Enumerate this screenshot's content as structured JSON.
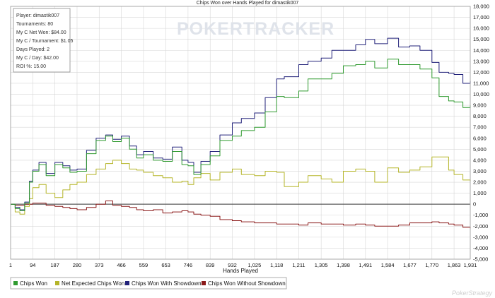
{
  "app": {
    "logo_text": "POKERTRACKER",
    "watermark": "PokerStrategy"
  },
  "stats": {
    "lines": [
      "Player: dimastik007",
      "Tournaments: 80",
      "My C Net Won: $84.00",
      "My C / Tournament: $1.05",
      "Days Played: 2",
      "My C / Day: $42.00",
      "ROI %: 15.00"
    ]
  },
  "colors": {
    "chips_won": "#2f9a2f",
    "net_expected": "#b5b52a",
    "with_showdown": "#22227a",
    "without_showdown": "#8b1a1a"
  },
  "chart_data": {
    "type": "line",
    "title": "Chips Won over Hands Played for dimastik007",
    "xlabel": "Hands Played",
    "ylabel": "",
    "xlim": [
      1,
      1931
    ],
    "ylim": [
      -5000,
      18000
    ],
    "x_ticks": [
      1,
      94,
      187,
      280,
      373,
      466,
      559,
      653,
      746,
      839,
      932,
      1025,
      1118,
      1211,
      1305,
      1398,
      1491,
      1584,
      1677,
      1770,
      1863,
      1931
    ],
    "x_tick_labels": [
      "1",
      "94",
      "187",
      "280",
      "373",
      "466",
      "559",
      "653",
      "746",
      "839",
      "932",
      "1,025",
      "1,118",
      "1,211",
      "1,305",
      "1,398",
      "1,491",
      "1,584",
      "1,677",
      "1,770",
      "1,863",
      "1,931"
    ],
    "y_ticks": [
      -5000,
      -4000,
      -3000,
      -2000,
      -1000,
      0,
      1000,
      2000,
      3000,
      4000,
      5000,
      6000,
      7000,
      8000,
      9000,
      10000,
      11000,
      12000,
      13000,
      14000,
      15000,
      16000,
      17000,
      18000
    ],
    "y_tick_labels": [
      "-5,000",
      "-4,000",
      "-3,000",
      "-2,000",
      "-1,000",
      "0",
      "1,000",
      "2,000",
      "3,000",
      "4,000",
      "5,000",
      "6,000",
      "7,000",
      "8,000",
      "9,000",
      "10,000",
      "11,000",
      "12,000",
      "13,000",
      "14,000",
      "15,000",
      "16,000",
      "17,000",
      "18,000"
    ],
    "grid": true,
    "legend_position": "bottom",
    "series": [
      {
        "name": "Chips Won",
        "x": [
          1,
          20,
          40,
          60,
          80,
          94,
          120,
          150,
          187,
          220,
          250,
          280,
          320,
          360,
          400,
          430,
          466,
          500,
          530,
          559,
          600,
          640,
          680,
          720,
          746,
          770,
          800,
          839,
          880,
          932,
          970,
          1025,
          1070,
          1118,
          1150,
          1211,
          1250,
          1305,
          1350,
          1398,
          1450,
          1491,
          1530,
          1584,
          1630,
          1677,
          1720,
          1770,
          1800,
          1840,
          1863,
          1900,
          1931
        ],
        "values": [
          0,
          -400,
          -600,
          100,
          2000,
          3000,
          3600,
          2600,
          3600,
          3300,
          2900,
          3000,
          4600,
          5800,
          6200,
          5700,
          6000,
          5000,
          4200,
          4500,
          4000,
          3900,
          4800,
          3600,
          3500,
          2700,
          3600,
          4400,
          5800,
          6200,
          6700,
          7000,
          8400,
          9800,
          9700,
          10300,
          11400,
          11400,
          11900,
          12600,
          12700,
          13000,
          12400,
          13200,
          12700,
          12700,
          12300,
          11500,
          9800,
          9400,
          9300,
          8800,
          9000
        ]
      },
      {
        "name": "Net Expected Chips Won",
        "x": [
          1,
          20,
          40,
          60,
          80,
          94,
          120,
          150,
          187,
          220,
          250,
          280,
          320,
          360,
          400,
          430,
          466,
          500,
          530,
          559,
          600,
          640,
          680,
          720,
          746,
          770,
          800,
          839,
          880,
          932,
          970,
          1025,
          1070,
          1118,
          1150,
          1211,
          1250,
          1305,
          1350,
          1398,
          1450,
          1491,
          1530,
          1584,
          1630,
          1677,
          1720,
          1770,
          1800,
          1840,
          1863,
          1900,
          1931
        ],
        "values": [
          0,
          -700,
          -900,
          -200,
          500,
          1500,
          1800,
          1000,
          600,
          1300,
          1800,
          2000,
          2700,
          3200,
          3700,
          4000,
          3700,
          3200,
          3100,
          2900,
          2600,
          2400,
          2000,
          2100,
          1800,
          2400,
          2800,
          2200,
          2900,
          3200,
          2700,
          2600,
          3000,
          2900,
          1600,
          2000,
          2600,
          2300,
          2000,
          3000,
          3200,
          3000,
          2000,
          3300,
          2900,
          3100,
          3400,
          4300,
          4300,
          3100,
          2700,
          2200,
          2100
        ]
      },
      {
        "name": "Chips Won With Showdown",
        "x": [
          1,
          20,
          40,
          60,
          80,
          94,
          120,
          150,
          187,
          220,
          250,
          280,
          320,
          360,
          400,
          430,
          466,
          500,
          530,
          559,
          600,
          640,
          680,
          720,
          746,
          770,
          800,
          839,
          880,
          932,
          970,
          1025,
          1070,
          1118,
          1150,
          1211,
          1250,
          1305,
          1350,
          1398,
          1450,
          1491,
          1530,
          1584,
          1630,
          1677,
          1720,
          1770,
          1800,
          1840,
          1863,
          1900,
          1931
        ],
        "values": [
          0,
          -300,
          -500,
          200,
          2100,
          3100,
          3800,
          2800,
          3800,
          3500,
          3100,
          3200,
          4900,
          6000,
          6300,
          5900,
          6200,
          5300,
          4500,
          4800,
          4200,
          4100,
          5200,
          4000,
          3800,
          2900,
          3900,
          4800,
          6300,
          7400,
          7800,
          8300,
          9700,
          11400,
          11600,
          12700,
          13000,
          13300,
          14000,
          14000,
          14500,
          15000,
          14600,
          15100,
          14300,
          14400,
          14000,
          12900,
          12000,
          11900,
          11800,
          11000,
          11200
        ]
      },
      {
        "name": "Chips Won Without Showdown",
        "x": [
          1,
          20,
          40,
          60,
          80,
          94,
          120,
          150,
          187,
          220,
          250,
          280,
          320,
          360,
          400,
          430,
          466,
          500,
          530,
          559,
          600,
          640,
          680,
          720,
          746,
          770,
          800,
          839,
          880,
          932,
          970,
          1025,
          1070,
          1118,
          1150,
          1211,
          1250,
          1305,
          1350,
          1398,
          1450,
          1491,
          1530,
          1584,
          1630,
          1677,
          1720,
          1770,
          1800,
          1840,
          1863,
          1900,
          1931
        ],
        "values": [
          0,
          -100,
          -100,
          0,
          0,
          100,
          100,
          -100,
          -200,
          -300,
          -400,
          -500,
          -300,
          0,
          300,
          -100,
          -200,
          -300,
          -500,
          -600,
          -500,
          -800,
          -700,
          -600,
          -700,
          -900,
          -1000,
          -1100,
          -1400,
          -1500,
          -1600,
          -1700,
          -1700,
          -1800,
          -1800,
          -1900,
          -1700,
          -1800,
          -1800,
          -1900,
          -1800,
          -1900,
          -2000,
          -2000,
          -1900,
          -1700,
          -1700,
          -1600,
          -1700,
          -1800,
          -1900,
          -2100,
          -2200
        ]
      }
    ]
  }
}
